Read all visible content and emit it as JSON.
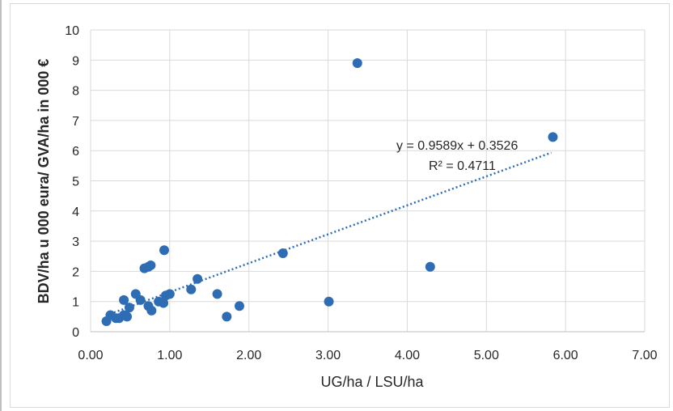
{
  "chart_data": {
    "type": "scatter",
    "xlabel": "UG/ha / LSU/ha",
    "ylabel": "BDV/ha u 000 eura/ GVA/ha in 000 €",
    "xlim": [
      0,
      7
    ],
    "ylim": [
      0,
      10
    ],
    "x_ticks": [
      "0.00",
      "1.00",
      "2.00",
      "3.00",
      "4.00",
      "5.00",
      "6.00",
      "7.00"
    ],
    "y_ticks": [
      "0",
      "1",
      "2",
      "3",
      "4",
      "5",
      "6",
      "7",
      "8",
      "9",
      "10"
    ],
    "grid": true,
    "marker_color": "#2e6db4",
    "trendline": {
      "type": "linear",
      "slope": 0.9589,
      "intercept": 0.3526,
      "x_range": [
        0.2,
        5.82
      ],
      "equation": "y = 0.9589x + 0.3526",
      "r2": "R² = 0.4711",
      "style": "dotted"
    },
    "points": [
      {
        "x": 0.2,
        "y": 0.35
      },
      {
        "x": 0.25,
        "y": 0.55
      },
      {
        "x": 0.32,
        "y": 0.45
      },
      {
        "x": 0.36,
        "y": 0.45
      },
      {
        "x": 0.42,
        "y": 1.05
      },
      {
        "x": 0.42,
        "y": 0.55
      },
      {
        "x": 0.46,
        "y": 0.5
      },
      {
        "x": 0.49,
        "y": 0.8
      },
      {
        "x": 0.57,
        "y": 1.25
      },
      {
        "x": 0.63,
        "y": 1.05
      },
      {
        "x": 0.68,
        "y": 2.1
      },
      {
        "x": 0.73,
        "y": 2.15
      },
      {
        "x": 0.76,
        "y": 2.2
      },
      {
        "x": 0.73,
        "y": 0.85
      },
      {
        "x": 0.77,
        "y": 0.7
      },
      {
        "x": 0.86,
        "y": 1.0
      },
      {
        "x": 0.92,
        "y": 0.95
      },
      {
        "x": 0.95,
        "y": 1.2
      },
      {
        "x": 0.93,
        "y": 2.7
      },
      {
        "x": 1.0,
        "y": 1.25
      },
      {
        "x": 1.27,
        "y": 1.4
      },
      {
        "x": 1.35,
        "y": 1.75
      },
      {
        "x": 1.6,
        "y": 1.25
      },
      {
        "x": 1.72,
        "y": 0.5
      },
      {
        "x": 1.88,
        "y": 0.85
      },
      {
        "x": 2.43,
        "y": 2.6
      },
      {
        "x": 3.01,
        "y": 1.0
      },
      {
        "x": 3.37,
        "y": 8.9
      },
      {
        "x": 4.29,
        "y": 2.15
      },
      {
        "x": 5.84,
        "y": 6.45
      }
    ]
  }
}
